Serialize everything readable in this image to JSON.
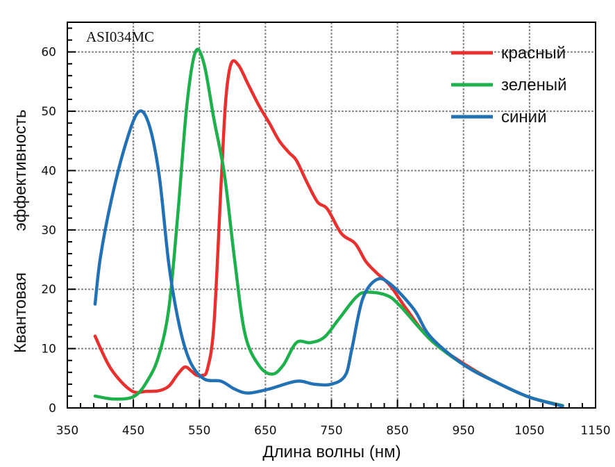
{
  "chart_data": {
    "type": "line",
    "title": "ASI034MC",
    "xlabel": "Длина волны (нм)",
    "ylabel": [
      "Квантовая",
      "эффективность"
    ],
    "xlim": [
      350,
      1150
    ],
    "ylim": [
      0,
      65
    ],
    "xticks": [
      350,
      450,
      550,
      650,
      750,
      850,
      950,
      1050,
      1150
    ],
    "yticks": [
      0,
      10,
      20,
      30,
      40,
      50,
      60
    ],
    "grid": true,
    "legend_position": "top-right",
    "series": [
      {
        "name": "красный",
        "color": "#e8312f",
        "x": [
          392,
          416,
          447,
          470,
          489,
          504,
          516,
          528,
          538,
          546,
          554,
          562,
          572,
          583,
          590,
          598,
          609,
          624,
          640,
          656,
          671,
          686,
          697,
          713,
          729,
          744,
          765,
          786,
          802,
          818,
          839,
          864,
          900,
          950,
          1000,
          1050,
          1100
        ],
        "y": [
          12.1,
          6.6,
          2.9,
          2.8,
          2.9,
          3.7,
          5.5,
          6.9,
          6.2,
          5.5,
          5.5,
          6.5,
          14,
          38,
          52,
          58,
          57.8,
          54.5,
          51,
          48,
          45,
          43,
          41.7,
          38,
          34.7,
          33.5,
          29.4,
          27.7,
          24.7,
          22.8,
          20.6,
          16.6,
          11.5,
          7.5,
          4.3,
          1.8,
          0.4
        ]
      },
      {
        "name": "зеленый",
        "color": "#1db04b",
        "x": [
          392,
          421,
          452,
          473,
          489,
          504,
          518,
          531,
          544,
          557,
          572,
          588,
          603,
          619,
          640,
          660,
          677,
          697,
          718,
          739,
          760,
          786,
          802,
          833,
          854,
          900,
          950,
          1000,
          1050,
          1100
        ],
        "y": [
          2,
          1.5,
          2,
          4.9,
          9,
          17,
          33.5,
          51,
          60,
          58,
          48.7,
          39.3,
          25.3,
          12.5,
          7.2,
          5.7,
          7.2,
          11,
          11,
          11.9,
          14.8,
          18.5,
          19.5,
          19,
          17.2,
          11.5,
          7.3,
          4.3,
          1.8,
          0.4
        ]
      },
      {
        "name": "синий",
        "color": "#2371b5",
        "x": [
          392,
          400,
          416,
          437,
          457,
          473,
          489,
          504,
          520,
          536,
          557,
          583,
          603,
          624,
          656,
          697,
          724,
          750,
          771,
          781,
          797,
          818,
          839,
          875,
          900,
          950,
          1000,
          1050,
          1100
        ],
        "y": [
          17.5,
          25.3,
          34.7,
          44,
          49.8,
          48,
          39.3,
          24,
          13.7,
          7.8,
          4.9,
          4.5,
          3.2,
          2.5,
          3.2,
          4.5,
          4,
          4,
          5.5,
          10,
          18.3,
          21.6,
          20.9,
          16.6,
          12,
          7.3,
          4.3,
          1.8,
          0.3
        ]
      }
    ]
  }
}
